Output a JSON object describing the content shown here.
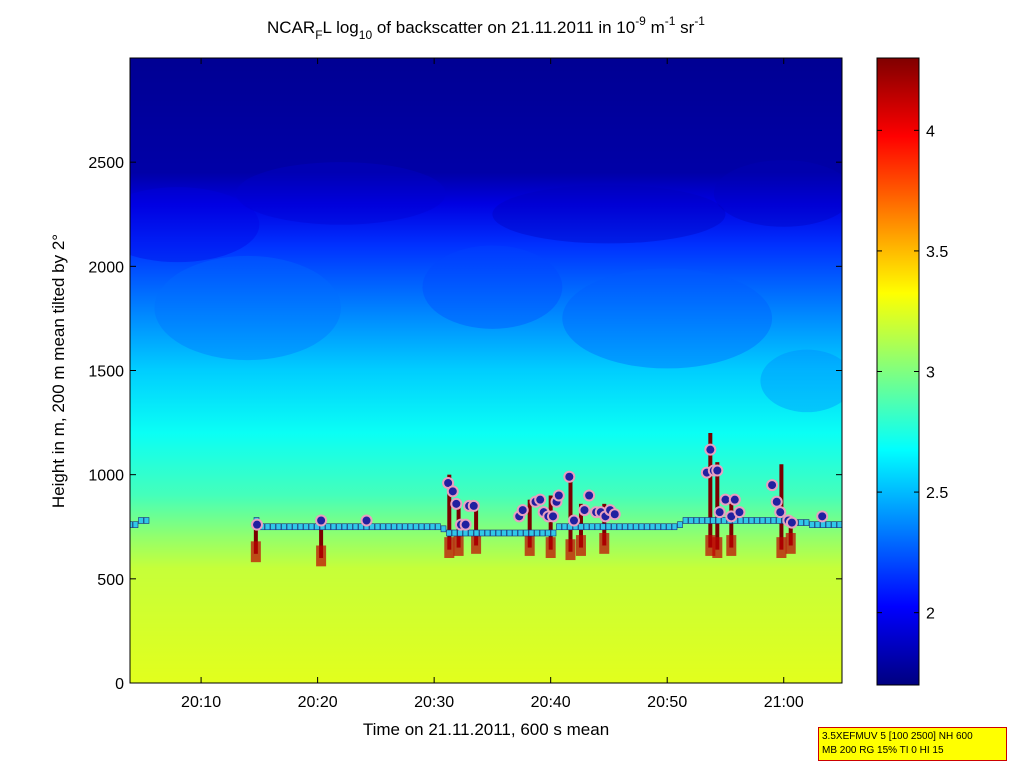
{
  "chart_data": {
    "type": "heatmap",
    "title": {
      "main": "NCAR",
      "sub_F": "F",
      "after_F": "L log",
      "sub_10": "10",
      "rest": " of backscatter on 21.11.2011 in 10",
      "sup_exp1": "-9",
      "unit_m": " m",
      "sup_exp2": "-1",
      "unit_sr": " sr",
      "sup_exp3": "-1"
    },
    "xlabel": "Time on 21.11.2011, 600 s mean",
    "ylabel": "Height in m, 200 m mean tilted by 2°",
    "x_ticks": [
      "20:10",
      "20:20",
      "20:30",
      "20:40",
      "20:50",
      "21:00"
    ],
    "x_tick_minutes": [
      10,
      20,
      30,
      40,
      50,
      60
    ],
    "xlim_minutes": [
      3.9,
      65.0
    ],
    "y_ticks": [
      "0",
      "500",
      "1000",
      "1500",
      "2000",
      "2500"
    ],
    "y_tick_values": [
      0,
      500,
      1000,
      1500,
      2000,
      2500
    ],
    "ylim": [
      0,
      3000
    ],
    "colorbar": {
      "ticks": [
        "2",
        "2.5",
        "3",
        "3.5",
        "4"
      ],
      "tick_values": [
        2,
        2.5,
        3,
        3.5,
        4
      ],
      "range": [
        1.7,
        4.3
      ],
      "colormap": "jet"
    },
    "field_levels": [
      {
        "height": 0,
        "value": 3.25
      },
      {
        "height": 550,
        "value": 3.18
      },
      {
        "height": 700,
        "value": 3.05
      },
      {
        "height": 900,
        "value": 2.85
      },
      {
        "height": 1200,
        "value": 2.7
      },
      {
        "height": 1500,
        "value": 2.55
      },
      {
        "height": 1800,
        "value": 2.35
      },
      {
        "height": 2100,
        "value": 2.15
      },
      {
        "height": 2300,
        "value": 1.95
      },
      {
        "height": 2450,
        "value": 1.8
      },
      {
        "height": 3000,
        "value": 1.75
      }
    ],
    "mixing_layer_height": [
      {
        "minute": 3.9,
        "height": 760
      },
      {
        "minute": 4.5,
        "height": 780
      },
      {
        "minute": 5.5,
        "height": 780
      },
      {
        "minute": 14.8,
        "height": 750
      },
      {
        "minute": 30.5,
        "height": 740
      },
      {
        "minute": 31.0,
        "height": 720
      },
      {
        "minute": 40.2,
        "height": 720
      },
      {
        "minute": 40.6,
        "height": 750
      },
      {
        "minute": 51.0,
        "height": 760
      },
      {
        "minute": 51.5,
        "height": 780
      },
      {
        "minute": 59.0,
        "height": 780
      },
      {
        "minute": 61.0,
        "height": 770
      },
      {
        "minute": 62.0,
        "height": 760
      },
      {
        "minute": 65.0,
        "height": 760
      }
    ],
    "cloud_base_points": [
      {
        "minute": 14.8,
        "height": 760
      },
      {
        "minute": 20.3,
        "height": 780
      },
      {
        "minute": 24.2,
        "height": 780
      },
      {
        "minute": 31.2,
        "height": 960
      },
      {
        "minute": 31.6,
        "height": 920
      },
      {
        "minute": 31.9,
        "height": 860
      },
      {
        "minute": 32.3,
        "height": 760
      },
      {
        "minute": 32.7,
        "height": 760
      },
      {
        "minute": 33.0,
        "height": 850
      },
      {
        "minute": 33.4,
        "height": 850
      },
      {
        "minute": 37.3,
        "height": 800
      },
      {
        "minute": 37.6,
        "height": 830
      },
      {
        "minute": 38.7,
        "height": 870
      },
      {
        "minute": 39.1,
        "height": 880
      },
      {
        "minute": 39.4,
        "height": 820
      },
      {
        "minute": 39.8,
        "height": 800
      },
      {
        "minute": 40.2,
        "height": 800
      },
      {
        "minute": 40.5,
        "height": 870
      },
      {
        "minute": 40.7,
        "height": 900
      },
      {
        "minute": 41.6,
        "height": 990
      },
      {
        "minute": 42.0,
        "height": 780
      },
      {
        "minute": 42.9,
        "height": 830
      },
      {
        "minute": 43.3,
        "height": 900
      },
      {
        "minute": 43.9,
        "height": 820
      },
      {
        "minute": 44.3,
        "height": 820
      },
      {
        "minute": 44.7,
        "height": 800
      },
      {
        "minute": 45.1,
        "height": 830
      },
      {
        "minute": 45.5,
        "height": 810
      },
      {
        "minute": 53.4,
        "height": 1010
      },
      {
        "minute": 53.7,
        "height": 1120
      },
      {
        "minute": 54.0,
        "height": 1020
      },
      {
        "minute": 54.3,
        "height": 1020
      },
      {
        "minute": 54.5,
        "height": 820
      },
      {
        "minute": 55.0,
        "height": 880
      },
      {
        "minute": 55.5,
        "height": 800
      },
      {
        "minute": 55.8,
        "height": 880
      },
      {
        "minute": 56.2,
        "height": 820
      },
      {
        "minute": 59.0,
        "height": 950
      },
      {
        "minute": 59.4,
        "height": 870
      },
      {
        "minute": 59.7,
        "height": 820
      },
      {
        "minute": 60.4,
        "height": 780
      },
      {
        "minute": 60.7,
        "height": 770
      },
      {
        "minute": 63.3,
        "height": 800
      }
    ],
    "strong_backscatter_columns": [
      {
        "minute": 14.7,
        "top": 760,
        "bottom": 620
      },
      {
        "minute": 20.3,
        "top": 790,
        "bottom": 600
      },
      {
        "minute": 31.3,
        "top": 1000,
        "bottom": 640
      },
      {
        "minute": 32.1,
        "top": 880,
        "bottom": 650
      },
      {
        "minute": 33.6,
        "top": 860,
        "bottom": 660
      },
      {
        "minute": 38.2,
        "top": 880,
        "bottom": 650
      },
      {
        "minute": 40.0,
        "top": 900,
        "bottom": 640
      },
      {
        "minute": 41.7,
        "top": 1000,
        "bottom": 630
      },
      {
        "minute": 42.6,
        "top": 860,
        "bottom": 650
      },
      {
        "minute": 44.6,
        "top": 860,
        "bottom": 660
      },
      {
        "minute": 53.7,
        "top": 1200,
        "bottom": 650
      },
      {
        "minute": 54.3,
        "top": 1060,
        "bottom": 640
      },
      {
        "minute": 55.5,
        "top": 900,
        "bottom": 650
      },
      {
        "minute": 59.8,
        "top": 1050,
        "bottom": 640
      },
      {
        "minute": 60.6,
        "top": 800,
        "bottom": 660
      }
    ],
    "colors": {
      "mixing_layer_fill": "#30c8e8",
      "mixing_layer_edge": "#1a2a7a",
      "marker_fill": "#2020a0",
      "marker_edge": "#e8a0c0"
    }
  },
  "info_box": {
    "line1": "3.5XEFMUV 5 [100 2500] NH 600",
    "line2": "MB 200 RG 15% TI 0 HI 15"
  }
}
